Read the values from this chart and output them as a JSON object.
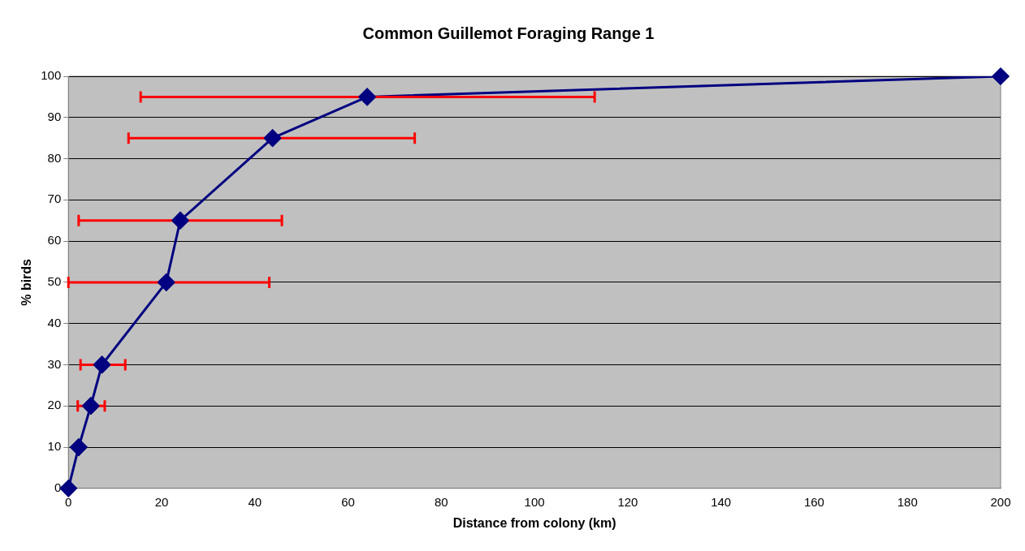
{
  "chart_data": {
    "type": "line",
    "title": "Common Guillemot Foraging Range 1",
    "xlabel": "Distance from colony (km)",
    "ylabel": "% birds",
    "x": [
      0,
      2.2,
      4.8,
      7.2,
      21,
      24,
      43.8,
      64.1,
      200
    ],
    "series": [
      {
        "color": "#000080",
        "values": [
          0,
          10,
          20,
          30,
          50,
          65,
          85,
          95,
          100
        ],
        "xerrors": [
          null,
          null,
          [
            2,
            7.8
          ],
          [
            2.6,
            12.2
          ],
          [
            0,
            43.1
          ],
          [
            2.2,
            45.8
          ],
          [
            12.9,
            74.3
          ],
          [
            15.5,
            112.9
          ],
          null
        ]
      }
    ],
    "xlim": [
      0,
      200
    ],
    "xticks": [
      0,
      20,
      40,
      60,
      80,
      100,
      120,
      140,
      160,
      180,
      200
    ],
    "ylim": [
      0,
      100
    ],
    "yticks": [
      0,
      10,
      20,
      30,
      40,
      50,
      60,
      70,
      80,
      90,
      100
    ],
    "grid": "y",
    "legend": false,
    "marker": "diamond",
    "line_style": "solid"
  }
}
